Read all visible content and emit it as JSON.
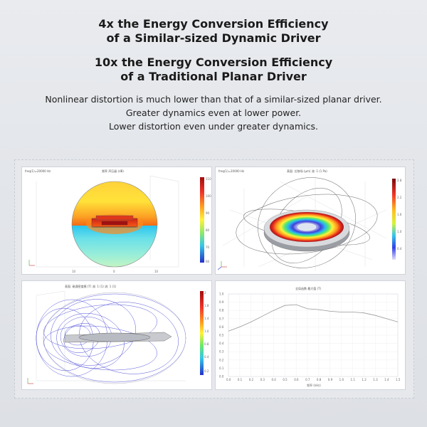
{
  "heading1": {
    "line1": "4x the Energy Conversion Efficiency",
    "line2": "of a Similar-sized Dynamic Driver"
  },
  "heading2": {
    "line1": "10x the Energy Conversion Efficiency",
    "line2": "of a Traditional Planar Driver"
  },
  "description": [
    "Nonlinear distortion is much lower than that of a similar-sized planar driver.",
    "Greater dynamics even at lower power.",
    "Lower distortion even under greater dynamics."
  ],
  "colors": {
    "background": "#e4e7eb",
    "text": "#1a1a1a",
    "line_plot": "#999999"
  },
  "line_plot": {
    "x": [
      0,
      0.1,
      0.2,
      0.3,
      0.4,
      0.5,
      0.6,
      0.7,
      0.8,
      0.9,
      1.0,
      1.1,
      1.2,
      1.3,
      1.4,
      1.5
    ],
    "y": [
      0.55,
      0.6,
      0.66,
      0.73,
      0.8,
      0.86,
      0.87,
      0.82,
      0.81,
      0.79,
      0.78,
      0.78,
      0.77,
      0.74,
      0.7,
      0.66
    ]
  }
}
